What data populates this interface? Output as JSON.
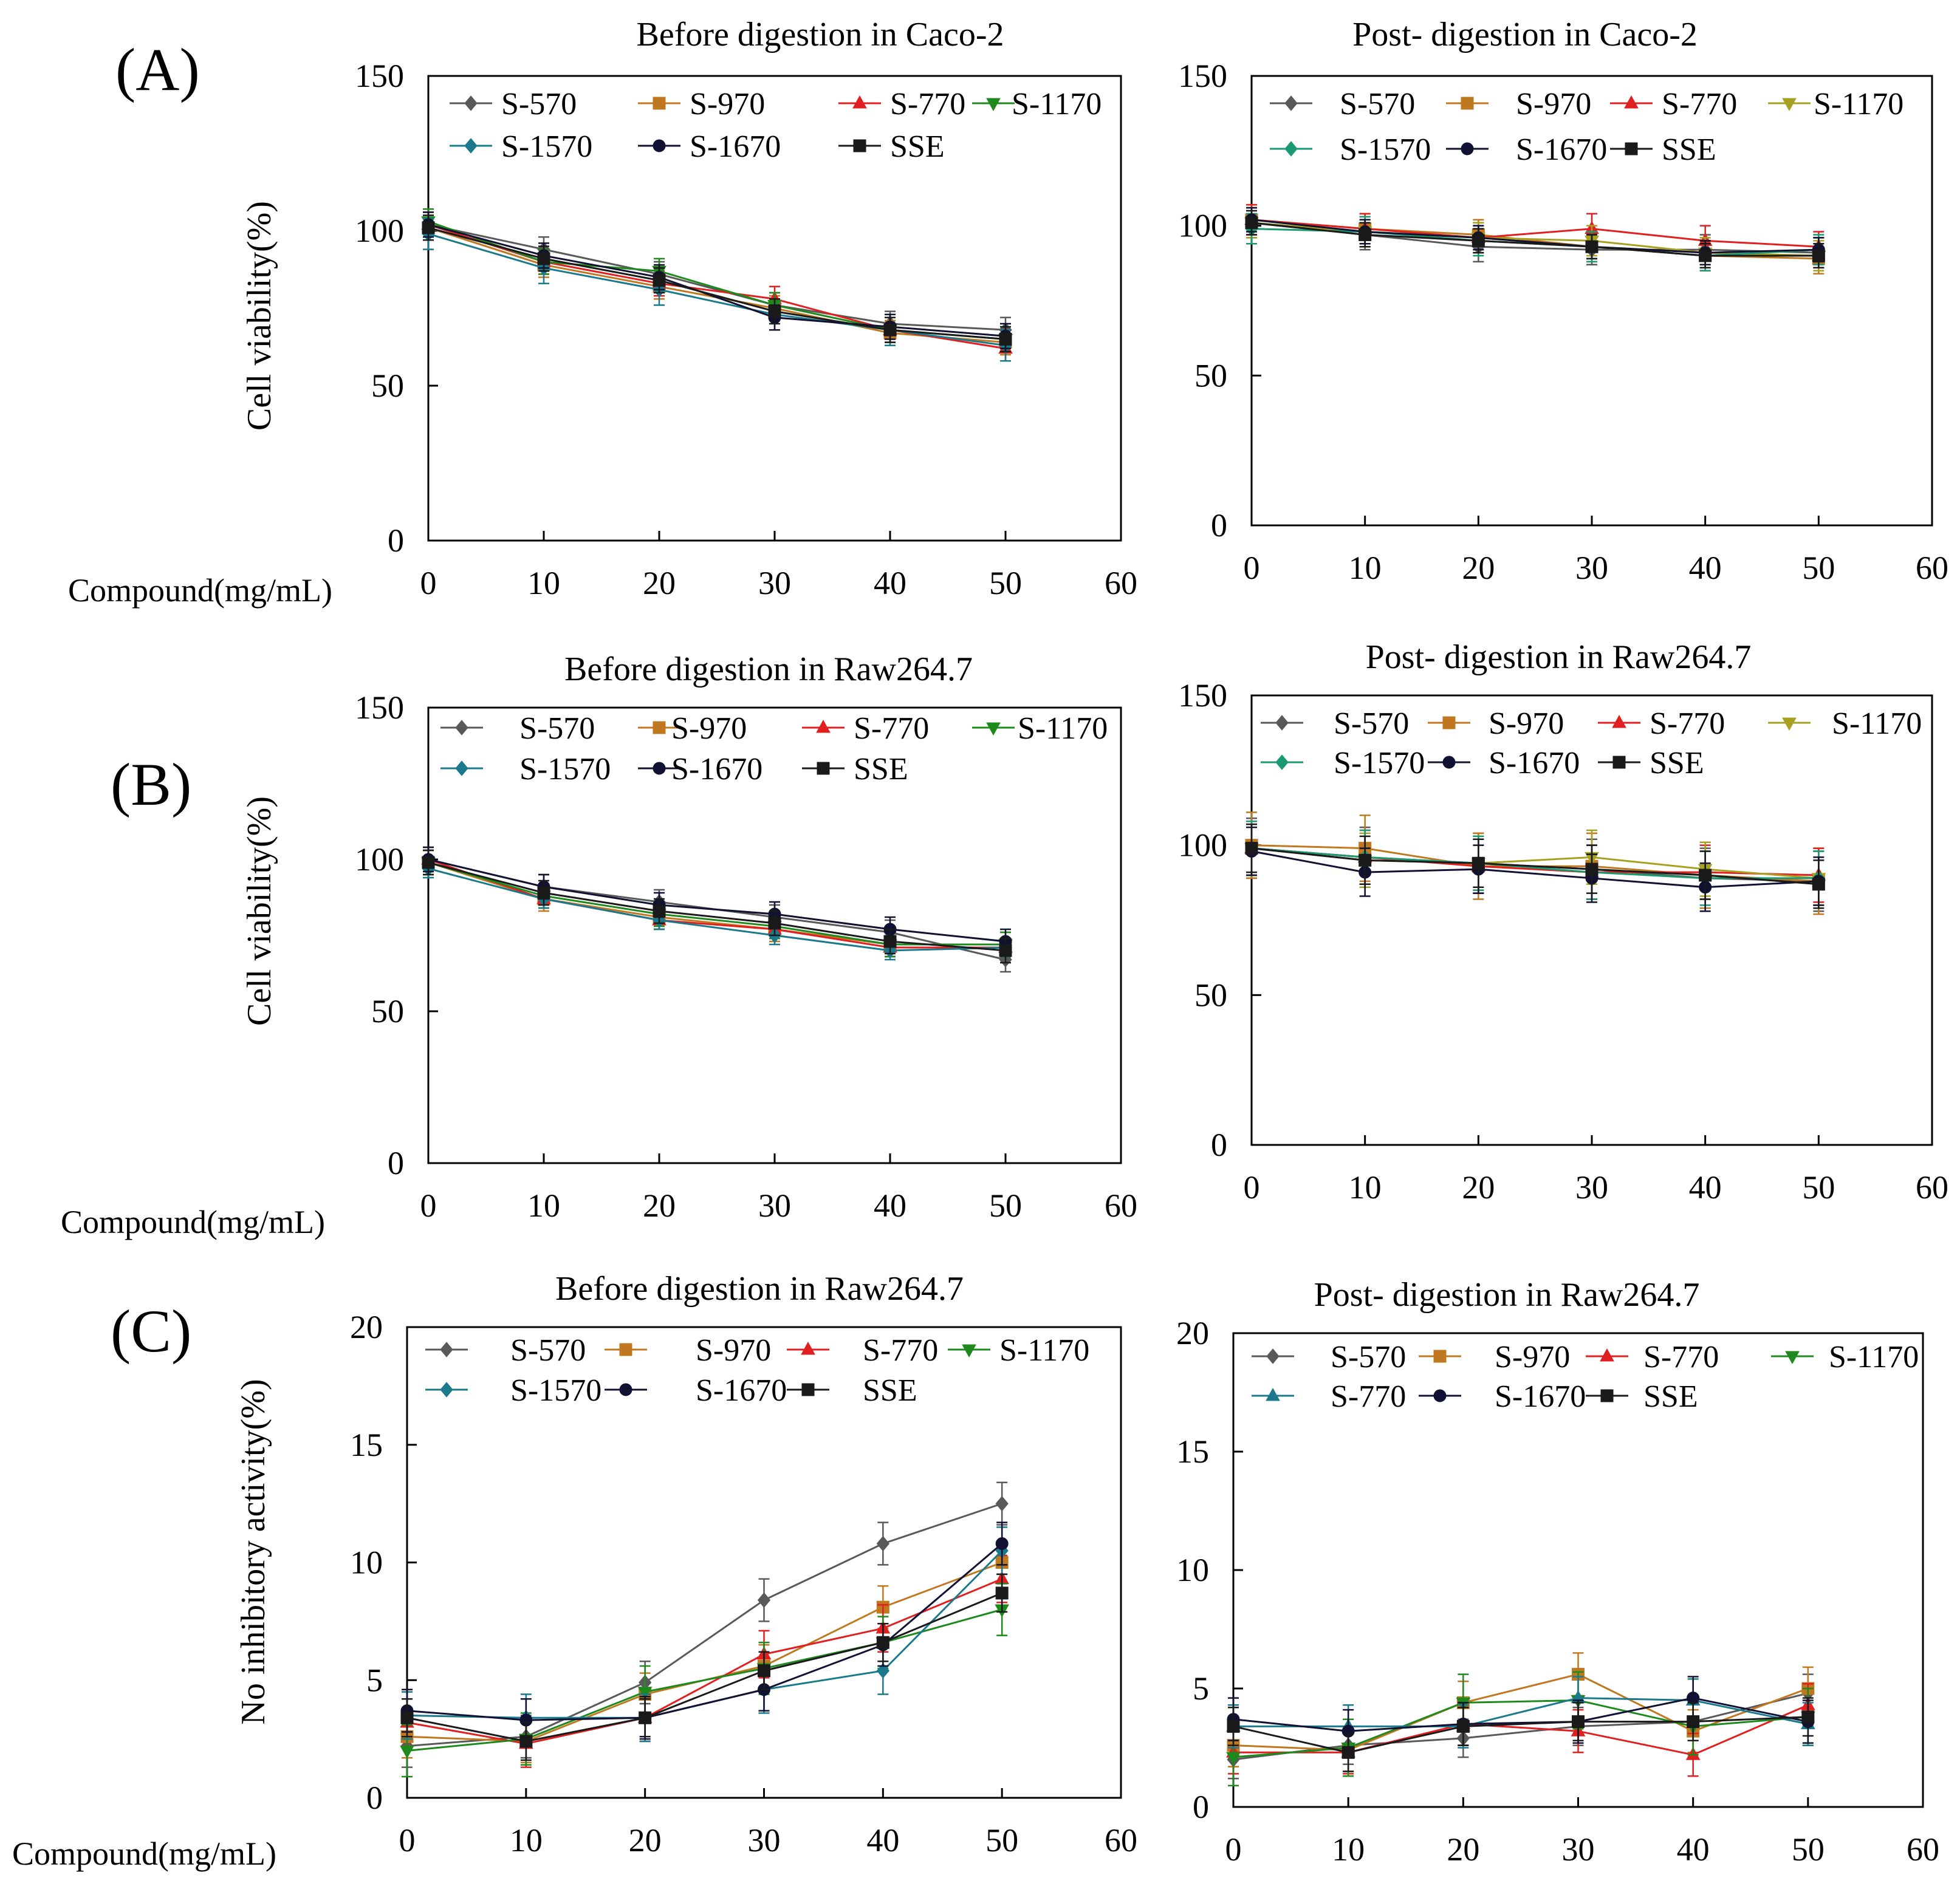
{
  "figure": {
    "panel_labels": [
      "(A)",
      "(B)",
      "(C)"
    ],
    "xlabel": "Compound(mg/mL)",
    "ylabels": [
      "Cell viability(%)",
      "Cell viability(%)",
      "No inhibitory activity(%)"
    ]
  },
  "series_colors": {
    "S-570": "#595959",
    "S-970": "#c07820",
    "S-770": "#e02020",
    "S-1170": "#1e8a1e",
    "S-1570": "#1a7a8c",
    "S-1670": "#111133",
    "SSE": "#1a1a1a",
    "S-1170-yellow": "#a8a020",
    "S-1570-teal": "#1a9a72"
  },
  "chart_data": [
    {
      "type": "line",
      "title": "Before digestion in Caco-2",
      "xlabel": "Compound(mg/mL)",
      "ylabel": "Cell viability(%)",
      "xlim": [
        0,
        60
      ],
      "ylim": [
        0,
        150
      ],
      "xticks": [
        "0",
        "10",
        "20",
        "30",
        "40",
        "50",
        "60"
      ],
      "yticks": [
        "0",
        "50",
        "100",
        "150"
      ],
      "x": [
        0,
        10,
        20,
        30,
        40,
        50
      ],
      "series": [
        {
          "name": "S-570",
          "values": [
            102,
            94,
            86,
            76,
            70,
            68
          ],
          "err": 4
        },
        {
          "name": "S-970",
          "values": [
            101,
            89,
            82,
            75,
            67,
            64
          ],
          "err": 4
        },
        {
          "name": "S-770",
          "values": [
            102,
            90,
            83,
            78,
            68,
            62
          ],
          "err": 4
        },
        {
          "name": "S-1170",
          "values": [
            103,
            90,
            87,
            76,
            68,
            65
          ],
          "err": 4
        },
        {
          "name": "S-1570",
          "values": [
            99,
            88,
            81,
            73,
            68,
            63
          ],
          "err": 5
        },
        {
          "name": "S-1670",
          "values": [
            102,
            92,
            85,
            72,
            69,
            66
          ],
          "err": 4
        },
        {
          "name": "SSE",
          "values": [
            101,
            91,
            84,
            74,
            68,
            65
          ],
          "err": 4
        }
      ]
    },
    {
      "type": "line",
      "title": "Post- digestion in Caco-2",
      "xlim": [
        0,
        60
      ],
      "ylim": [
        0,
        150
      ],
      "xticks": [
        "0",
        "10",
        "20",
        "30",
        "40",
        "50",
        "60"
      ],
      "yticks": [
        "0",
        "50",
        "100",
        "150"
      ],
      "x": [
        0,
        10,
        20,
        30,
        40,
        50
      ],
      "series": [
        {
          "name": "S-570",
          "values": [
            101,
            97,
            93,
            92,
            92,
            91
          ],
          "err": 5
        },
        {
          "name": "S-970",
          "values": [
            102,
            99,
            97,
            93,
            90,
            89
          ],
          "err": 5
        },
        {
          "name": "S-770",
          "values": [
            102,
            99,
            96,
            99,
            95,
            93
          ],
          "err": 5
        },
        {
          "name": "S-1170",
          "values": [
            101,
            98,
            96,
            95,
            91,
            90
          ],
          "err": 5
        },
        {
          "name": "S-1570",
          "values": [
            99,
            98,
            95,
            93,
            90,
            92
          ],
          "err": 5
        },
        {
          "name": "S-1670",
          "values": [
            102,
            98,
            96,
            93,
            91,
            92
          ],
          "err": 4
        },
        {
          "name": "SSE",
          "values": [
            101,
            97,
            95,
            93,
            90,
            90
          ],
          "err": 4
        }
      ]
    },
    {
      "type": "line",
      "title": "Before digestion in Raw264.7",
      "xlabel": "Compound(mg/mL)",
      "ylabel": "Cell viability(%)",
      "xlim": [
        0,
        60
      ],
      "ylim": [
        0,
        150
      ],
      "xticks": [
        "0",
        "10",
        "20",
        "30",
        "40",
        "50",
        "60"
      ],
      "yticks": [
        "0",
        "50",
        "100",
        "150"
      ],
      "x": [
        0,
        10,
        20,
        30,
        40,
        50
      ],
      "series": [
        {
          "name": "S-570",
          "values": [
            100,
            91,
            86,
            81,
            76,
            67
          ],
          "err": 4
        },
        {
          "name": "S-970",
          "values": [
            99,
            87,
            81,
            77,
            72,
            72
          ],
          "err": 4
        },
        {
          "name": "S-770",
          "values": [
            100,
            87,
            80,
            77,
            71,
            71
          ],
          "err": 3
        },
        {
          "name": "S-1170",
          "values": [
            99,
            88,
            82,
            78,
            72,
            72
          ],
          "err": 4
        },
        {
          "name": "S-1570",
          "values": [
            97,
            87,
            80,
            75,
            70,
            71
          ],
          "err": 3
        },
        {
          "name": "S-1670",
          "values": [
            100,
            91,
            85,
            82,
            77,
            73
          ],
          "err": 4
        },
        {
          "name": "SSE",
          "values": [
            99,
            89,
            83,
            79,
            73,
            70
          ],
          "err": 4
        }
      ]
    },
    {
      "type": "line",
      "title": "Post- digestion in Raw264.7",
      "xlim": [
        0,
        60
      ],
      "ylim": [
        0,
        150
      ],
      "xticks": [
        "0",
        "10",
        "20",
        "30",
        "40",
        "50",
        "60"
      ],
      "yticks": [
        "0",
        "50",
        "100",
        "150"
      ],
      "x": [
        0,
        10,
        20,
        30,
        40,
        50
      ],
      "series": [
        {
          "name": "S-570",
          "values": [
            99,
            96,
            94,
            92,
            89,
            88
          ],
          "err": 10
        },
        {
          "name": "S-970",
          "values": [
            100,
            99,
            93,
            93,
            90,
            88
          ],
          "err": 11
        },
        {
          "name": "S-770",
          "values": [
            99,
            96,
            93,
            91,
            91,
            90
          ],
          "err": 9
        },
        {
          "name": "S-1170",
          "values": [
            99,
            95,
            94,
            96,
            92,
            89
          ],
          "err": 9
        },
        {
          "name": "S-1570",
          "values": [
            99,
            96,
            94,
            91,
            89,
            89
          ],
          "err": 9
        },
        {
          "name": "S-1670",
          "values": [
            98,
            91,
            92,
            89,
            86,
            88
          ],
          "err": 8
        },
        {
          "name": "SSE",
          "values": [
            99,
            95,
            94,
            92,
            90,
            87
          ],
          "err": 8
        }
      ]
    },
    {
      "type": "line",
      "title": "Before digestion in Raw264.7",
      "xlabel": "Compound(mg/mL)",
      "ylabel": "No inhibitory activity(%)",
      "xlim": [
        0,
        60
      ],
      "ylim": [
        0,
        20
      ],
      "xticks": [
        "0",
        "10",
        "20",
        "30",
        "40",
        "50",
        "60"
      ],
      "yticks": [
        "0",
        "5",
        "10",
        "15",
        "20"
      ],
      "x": [
        0,
        10,
        20,
        30,
        40,
        50
      ],
      "series": [
        {
          "name": "S-570",
          "values": [
            2.2,
            2.6,
            4.9,
            8.4,
            10.8,
            12.5
          ],
          "err": 0.9
        },
        {
          "name": "S-970",
          "values": [
            2.6,
            2.4,
            4.4,
            5.6,
            8.1,
            10.0
          ],
          "err": 0.9
        },
        {
          "name": "S-770",
          "values": [
            3.2,
            2.3,
            3.4,
            6.1,
            7.2,
            9.3
          ],
          "err": 1.0
        },
        {
          "name": "S-1170",
          "values": [
            2.0,
            2.5,
            4.5,
            5.5,
            6.6,
            8.0
          ],
          "err": 1.1
        },
        {
          "name": "S-1570",
          "values": [
            3.5,
            3.4,
            3.4,
            4.6,
            5.4,
            10.5
          ],
          "err": 1.0
        },
        {
          "name": "S-1670",
          "values": [
            3.7,
            3.3,
            3.4,
            4.6,
            6.5,
            10.8
          ],
          "err": 0.9
        },
        {
          "name": "SSE",
          "values": [
            3.4,
            2.4,
            3.4,
            5.4,
            6.6,
            8.7
          ],
          "err": 0.8
        }
      ]
    },
    {
      "type": "line",
      "title": "Post- digestion in Raw264.7",
      "xlim": [
        0,
        60
      ],
      "ylim": [
        0,
        20
      ],
      "xticks": [
        "0",
        "10",
        "20",
        "30",
        "40",
        "50",
        "60"
      ],
      "yticks": [
        "0",
        "5",
        "10",
        "15",
        "20"
      ],
      "x": [
        0,
        10,
        20,
        30,
        40,
        50
      ],
      "series": [
        {
          "name": "S-570",
          "values": [
            2.0,
            2.6,
            2.9,
            3.4,
            3.6,
            4.8
          ],
          "err": 0.8
        },
        {
          "name": "S-970",
          "values": [
            2.6,
            2.4,
            4.4,
            5.6,
            3.2,
            5.0
          ],
          "err": 0.9
        },
        {
          "name": "S-770",
          "values": [
            2.3,
            2.3,
            3.5,
            3.2,
            2.2,
            4.3
          ],
          "err": 0.9
        },
        {
          "name": "S-1170",
          "values": [
            2.1,
            2.5,
            4.4,
            4.5,
            3.4,
            3.8
          ],
          "err": 1.2
        },
        {
          "name": "S-770",
          "values": [
            3.4,
            3.4,
            3.4,
            4.6,
            4.5,
            3.5
          ],
          "err": 0.9
        },
        {
          "name": "S-1670",
          "values": [
            3.7,
            3.2,
            3.5,
            3.6,
            4.6,
            3.6
          ],
          "err": 0.9
        },
        {
          "name": "SSE",
          "values": [
            3.4,
            2.3,
            3.4,
            3.6,
            3.6,
            3.8
          ],
          "err": 0.8
        }
      ]
    }
  ]
}
